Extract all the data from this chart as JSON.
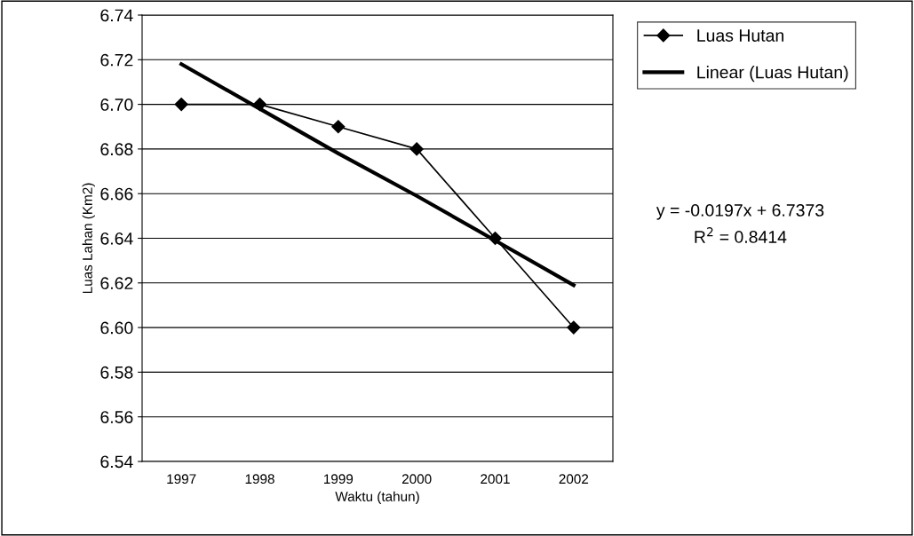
{
  "chart_data": {
    "type": "line",
    "xlabel": "Waktu (tahun)",
    "ylabel": "Luas Lahan (Km2)",
    "categories": [
      "1997",
      "1998",
      "1999",
      "2000",
      "2001",
      "2002"
    ],
    "series": [
      {
        "name": "Luas Hutan",
        "color": "#000000",
        "values": [
          6.7,
          6.7,
          6.69,
          6.68,
          6.64,
          6.6
        ],
        "marker": "diamond"
      },
      {
        "name": "Linear (Luas Hutan)",
        "color": "#000000",
        "values": [
          6.718,
          6.698,
          6.678,
          6.659,
          6.639,
          6.619
        ],
        "marker": "none"
      }
    ],
    "ylim": [
      6.54,
      6.74
    ],
    "yticks": [
      {
        "value": 6.54,
        "label": "6.54"
      },
      {
        "value": 6.56,
        "label": "6.56"
      },
      {
        "value": 6.58,
        "label": "6.58"
      },
      {
        "value": 6.6,
        "label": "6.60"
      },
      {
        "value": 6.62,
        "label": "6.62"
      },
      {
        "value": 6.64,
        "label": "6.64"
      },
      {
        "value": 6.66,
        "label": "6.66"
      },
      {
        "value": 6.68,
        "label": "6.68"
      },
      {
        "value": 6.7,
        "label": "6.70"
      },
      {
        "value": 6.72,
        "label": "6.72"
      },
      {
        "value": 6.74,
        "label": "6.74"
      }
    ],
    "grid": "y",
    "legend": "right",
    "line_style": "solid",
    "annotations": [
      "y = -0.0197x + 6.7373",
      "R$^{2}$ = 0.8414"
    ]
  }
}
